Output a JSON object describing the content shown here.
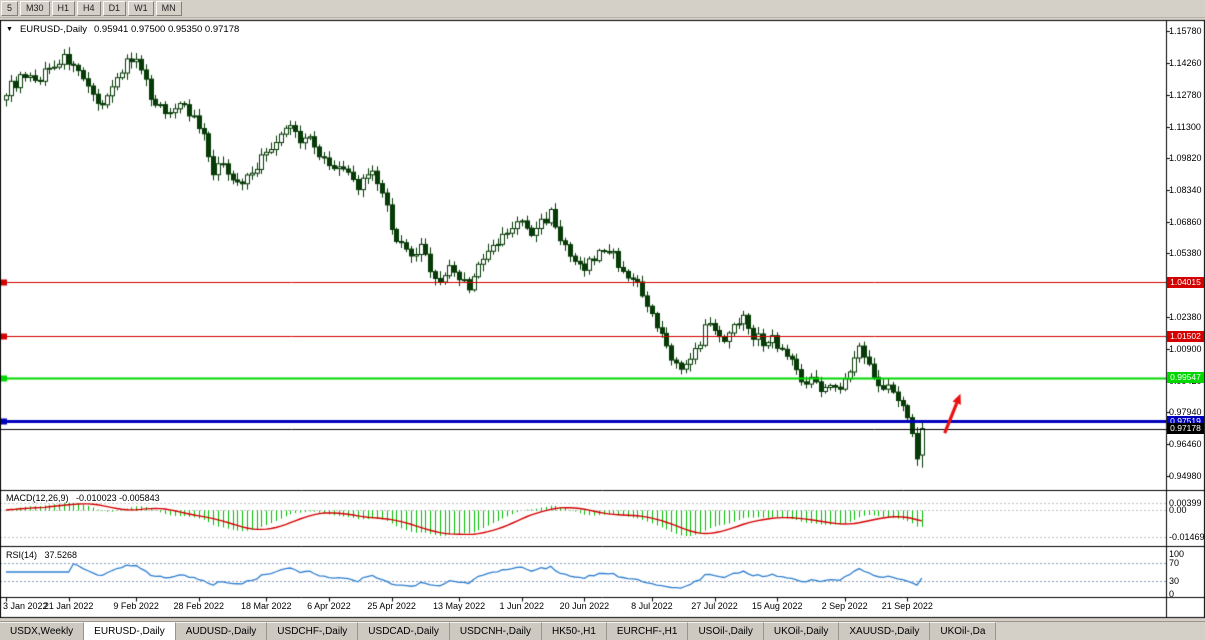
{
  "toolbar": {
    "timeframes": [
      "5",
      "M30",
      "H1",
      "H4",
      "D1",
      "W1",
      "MN"
    ]
  },
  "chart": {
    "dropdown_icon": "▼",
    "symbol_title": "EURUSD-,Daily",
    "ohlc_text": "0.95941 0.97500 0.95350 0.97178",
    "macd_name": "MACD(12,26,9)",
    "macd_values": "-0.010023 -0.005843",
    "rsi_name": "RSI(14)",
    "rsi_value": "37.5268"
  },
  "chart_data": {
    "type": "candlestick",
    "symbol": "EURUSD-",
    "timeframe": "Daily",
    "last_candle": {
      "open": 0.95941,
      "high": 0.975,
      "low": 0.9535,
      "close": 0.97178
    },
    "num_candles": 191,
    "price_axis": {
      "min": 0.944,
      "max": 1.162,
      "ticks": [
        "1.15780",
        "1.14260",
        "1.12780",
        "1.11300",
        "1.09820",
        "1.08340",
        "1.06860",
        "1.05380",
        "1.02380",
        "1.00900",
        "0.99420",
        "0.97940",
        "0.96460",
        "0.94980"
      ]
    },
    "date_axis": [
      [
        "3 Jan 2022",
        0
      ],
      [
        "21 Jan 2022",
        13
      ],
      [
        "9 Feb 2022",
        27
      ],
      [
        "28 Feb 2022",
        40
      ],
      [
        "18 Mar 2022",
        54
      ],
      [
        "6 Apr 2022",
        67
      ],
      [
        "25 Apr 2022",
        80
      ],
      [
        "13 May 2022",
        94
      ],
      [
        "1 Jun 2022",
        107
      ],
      [
        "20 Jun 2022",
        120
      ],
      [
        "8 Jul 2022",
        134
      ],
      [
        "27 Jul 2022",
        147
      ],
      [
        "15 Aug 2022",
        160
      ],
      [
        "2 Sep 2022",
        174
      ],
      [
        "21 Sep 2022",
        187
      ]
    ],
    "trend_points": [
      [
        0,
        1.13
      ],
      [
        3,
        1.1355
      ],
      [
        6,
        1.134
      ],
      [
        9,
        1.141
      ],
      [
        12,
        1.1448
      ],
      [
        14,
        1.143
      ],
      [
        16,
        1.133
      ],
      [
        19,
        1.123
      ],
      [
        22,
        1.131
      ],
      [
        25,
        1.1445
      ],
      [
        27,
        1.143
      ],
      [
        30,
        1.128
      ],
      [
        33,
        1.119
      ],
      [
        36,
        1.125
      ],
      [
        39,
        1.116
      ],
      [
        41,
        1.108
      ],
      [
        43,
        1.09
      ],
      [
        45,
        1.097
      ],
      [
        48,
        1.0855
      ],
      [
        50,
        1.09
      ],
      [
        52,
        1.095
      ],
      [
        54,
        1.101
      ],
      [
        57,
        1.108
      ],
      [
        59,
        1.114
      ],
      [
        61,
        1.106
      ],
      [
        63,
        1.11
      ],
      [
        65,
        1.099
      ],
      [
        67,
        1.097
      ],
      [
        70,
        1.092
      ],
      [
        73,
        1.0855
      ],
      [
        76,
        1.09
      ],
      [
        78,
        1.083
      ],
      [
        80,
        1.066
      ],
      [
        82,
        1.057
      ],
      [
        84,
        1.051
      ],
      [
        86,
        1.056
      ],
      [
        88,
        1.047
      ],
      [
        90,
        1.04
      ],
      [
        92,
        1.047
      ],
      [
        94,
        1.043
      ],
      [
        96,
        1.0385
      ],
      [
        98,
        1.047
      ],
      [
        100,
        1.054
      ],
      [
        103,
        1.061
      ],
      [
        105,
        1.066
      ],
      [
        107,
        1.068
      ],
      [
        109,
        1.063
      ],
      [
        111,
        1.068
      ],
      [
        113,
        1.073
      ],
      [
        115,
        1.061
      ],
      [
        117,
        1.051
      ],
      [
        119,
        1.047
      ],
      [
        121,
        1.049
      ],
      [
        123,
        1.054
      ],
      [
        125,
        1.056
      ],
      [
        127,
        1.049
      ],
      [
        129,
        1.044
      ],
      [
        131,
        1.038
      ],
      [
        133,
        1.028
      ],
      [
        135,
        1.019
      ],
      [
        137,
        1.01
      ],
      [
        139,
        1.002
      ],
      [
        141,
        1.0
      ],
      [
        143,
        1.007
      ],
      [
        145,
        1.019
      ],
      [
        147,
        1.019
      ],
      [
        149,
        1.014
      ],
      [
        151,
        1.019
      ],
      [
        153,
        1.026
      ],
      [
        155,
        1.016
      ],
      [
        157,
        1.012
      ],
      [
        159,
        1.014
      ],
      [
        161,
        1.009
      ],
      [
        163,
        1.003
      ],
      [
        165,
        0.996
      ],
      [
        167,
        0.994
      ],
      [
        169,
        0.991
      ],
      [
        171,
        0.994
      ],
      [
        173,
        0.989
      ],
      [
        175,
        0.999
      ],
      [
        177,
        1.009
      ],
      [
        179,
        1.002
      ],
      [
        181,
        0.994
      ],
      [
        183,
        0.991
      ],
      [
        185,
        0.987
      ],
      [
        186,
        0.9835
      ],
      [
        187,
        0.975
      ],
      [
        188,
        0.969
      ],
      [
        189,
        0.96
      ],
      [
        190,
        0.9718
      ]
    ],
    "hlines": [
      {
        "label": "1.04015",
        "price": 1.04015,
        "color": "#d40000",
        "width": 1
      },
      {
        "label": "1.01502",
        "price": 1.01502,
        "color": "#d40000",
        "width": 1
      },
      {
        "label": "0.99547",
        "price": 0.99547,
        "color": "#00d800",
        "width": 2
      },
      {
        "label": "0.97519",
        "price": 0.97519,
        "color": "#0000bb",
        "width": 3
      },
      {
        "label": "0.97178",
        "price": 0.97178,
        "color": "#000000",
        "width": 1,
        "role": "current-price"
      }
    ],
    "macd": {
      "params": [
        12,
        26,
        9
      ],
      "current": -0.010023,
      "signal_current": -0.005843,
      "axis": [
        [
          "0.00399",
          0.00399
        ],
        [
          "0.00",
          0
        ],
        [
          "-0.01469",
          -0.01469
        ]
      ]
    },
    "rsi": {
      "period": 14,
      "last": 37.5268,
      "levels": [
        70,
        30
      ],
      "axis": [
        [
          "100",
          100
        ],
        [
          "70",
          70
        ],
        [
          "30",
          30
        ],
        [
          "0",
          0
        ]
      ]
    },
    "annotation_arrow": {
      "x_index": 196,
      "price_from": 0.9697,
      "price_to": 0.9837,
      "color": "#e81010"
    }
  },
  "tabs": [
    {
      "label": "USDX,Weekly",
      "active": false
    },
    {
      "label": "EURUSD-,Daily",
      "active": true
    },
    {
      "label": "AUDUSD-,Daily",
      "active": false
    },
    {
      "label": "USDCHF-,Daily",
      "active": false
    },
    {
      "label": "USDCAD-,Daily",
      "active": false
    },
    {
      "label": "USDCNH-,Daily",
      "active": false
    },
    {
      "label": "HK50-,H1",
      "active": false
    },
    {
      "label": "EURCHF-,H1",
      "active": false
    },
    {
      "label": "USOil-,Daily",
      "active": false
    },
    {
      "label": "UKOil-,Daily",
      "active": false
    },
    {
      "label": "XAUUSD-,Daily",
      "active": false
    },
    {
      "label": "UKOil-,Da",
      "active": false
    }
  ],
  "colors": {
    "chart_bg": "#ffffff",
    "bull_body": "#ffffff",
    "bear_body": "#063a06",
    "candle_outline": "#063a06",
    "macd_hist": "#00c000",
    "macd_signal": "#d40000",
    "rsi_line": "#2f7fd0",
    "level_dash": "#8fa0c0",
    "grid_dash": "#c4c4c4",
    "tag_text": "#ffffff"
  }
}
